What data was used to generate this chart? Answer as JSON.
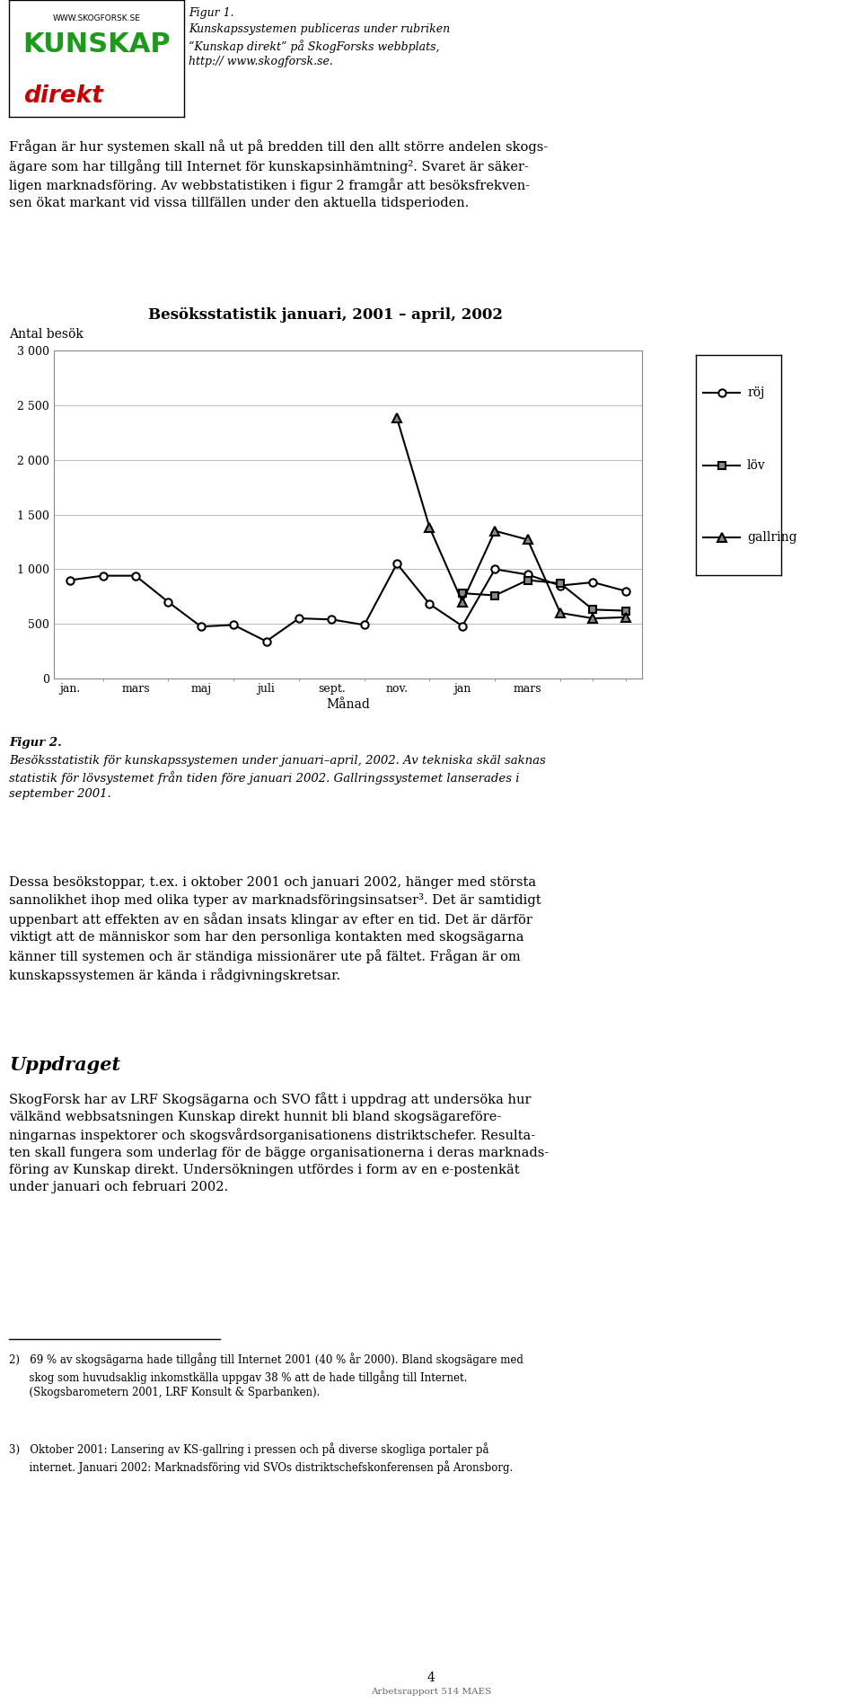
{
  "title": "Besöksstatistik januari, 2001 – april, 2002",
  "ylabel": "Antal besök",
  "xlabel": "Månad",
  "ylim": [
    0,
    3000
  ],
  "yticks": [
    0,
    500,
    1000,
    1500,
    2000,
    2500,
    3000
  ],
  "xtick_labels": [
    "jan.",
    "mars",
    "maj",
    "juli",
    "sept.",
    "nov.",
    "jan",
    "mars"
  ],
  "xtick_positions": [
    0,
    2,
    4,
    6,
    8,
    10,
    12,
    14
  ],
  "roi_label": "röj",
  "lov_label": "löv",
  "gallring_label": "gallring",
  "roi_data": {
    "x": [
      0,
      1,
      2,
      3,
      4,
      5,
      6,
      7,
      8,
      9,
      10,
      11,
      12,
      13,
      14,
      15,
      16,
      17
    ],
    "y": [
      900,
      940,
      940,
      700,
      475,
      490,
      340,
      550,
      540,
      490,
      1050,
      680,
      480,
      1000,
      950,
      850,
      880,
      800
    ]
  },
  "lov_data": {
    "x": [
      12,
      13,
      14,
      15,
      16,
      17
    ],
    "y": [
      780,
      760,
      900,
      870,
      630,
      620
    ]
  },
  "gallring_data": {
    "x": [
      10,
      11,
      12,
      13,
      14,
      15,
      16,
      17
    ],
    "y": [
      2380,
      1380,
      700,
      1350,
      1270,
      600,
      550,
      560
    ]
  },
  "line_color": "#000000",
  "marker_color_roi": "#ffffff",
  "marker_color_lov": "#888888",
  "marker_color_gallring": "#888888",
  "background_color": "#ffffff",
  "title_fontsize": 12,
  "axis_label_fontsize": 10,
  "tick_fontsize": 9,
  "legend_fontsize": 10,
  "body_fontsize": 10,
  "figur1_text": [
    "Figur 1.",
    "Kunskapssystemen publiceras under rubriken",
    "“Kunskap direkt” på SkogForsks webbplats,",
    "http:// www.skogforsk.se."
  ],
  "body_text1": "Frågan är hur systemen skall nå ut på bredden till den allt större andelen skogs-\nägare som har tillgång till Internet för kunskapsinhämtning². Svaret är säker-\nligen marknadsföring. Av webbstatistiken i figur 2 framgår att besöksfrekven-\nsen ökat markant vid vissa tillfällen under den aktuella tidsperioden.",
  "figur2_bold": "Figur 2.",
  "figur2_caption": "Besöksstatistik för kunskapssystemen under januari–april, 2002. Av tekniska skäl saknas\nstatistik för lövsystemet från tiden före januari 2002. Gallringssystemet lanserades i\nseptember 2001.",
  "body_text2": "Dessa besökstoppar, t.ex. i oktober 2001 och januari 2002, hänger med största\nsannolikhet ihop med olika typer av marknadsföringsinsatser³. Det är samtidigt\nuppenbart att effekten av en sådan insats klingar av efter en tid. Det är därför\nviktigt att de människor som har den personliga kontakten med skogsägarna\nkänner till systemen och är ständiga missionärer ute på fältet. Frågan är om\nkunskapssystemen är kända i rådgivningskretsar.",
  "uppdrag_title": "Uppdraget",
  "uppdrag_text": "SkogForsk har av LRF Skogsägarna och SVO fått i uppdrag att undersöka hur\nvälkänd webbsatsningen Kunskap direkt hunnit bli bland skogsägareföre-\nningarnas inspektorer och skogsvårdsorganisationens distriktschefer. Resulta-\nten skall fungera som underlag för de bägge organisationerna i deras marknads-\nföring av Kunskap direkt. Undersökningen utfördes i form av en e-postenkät\nunder januari och februari 2002.",
  "footnote2": "2)   69 % av skogsägarna hade tillgång till Internet 2001 (40 % år 2000). Bland skogsägare med\n      skog som huvudsaklig inkomstkälla uppgav 38 % att de hade tillgång till Internet.\n      (Skogsbarometern 2001, LRF Konsult & Sparbanken).",
  "footnote3": "3)   Oktober 2001: Lansering av KS-gallring i pressen och på diverse skogliga portaler på\n      internet. Januari 2002: Marknadsföring vid SVOs distriktschefskonferensen på Aronsborg.",
  "page_number": "4",
  "footer": "Arbetsrapport 514 MAES"
}
